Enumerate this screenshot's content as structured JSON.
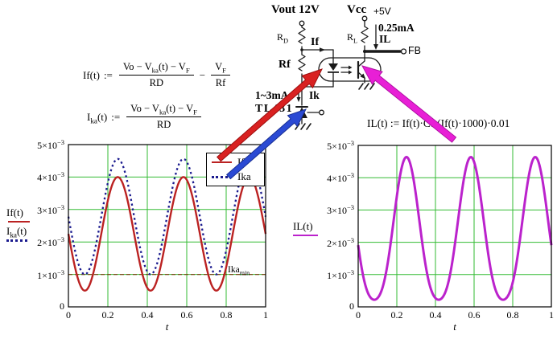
{
  "circuit": {
    "vout": "Vout 12V",
    "vcc": "Vcc",
    "vcc_supply": "+5V",
    "rd_main": "R",
    "rd_sub": "D",
    "rl_main": "R",
    "rl_sub": "L",
    "il_value": "0.25mA",
    "il_name": "IL",
    "fb": "FB",
    "if_name": "If",
    "rf": "Rf",
    "ik_range": "1~3mA",
    "ik_name": "Ik",
    "tl431": "TL431"
  },
  "formulas": {
    "if_lhs": "If(t)",
    "assign": ":=",
    "num_a": "Vo − V",
    "num_a_sub": "ka",
    "num_b": "(t) − V",
    "num_b_sub": "F",
    "den_rd": "RD",
    "minus": "−",
    "vf_main": "V",
    "vf_sub": "F",
    "den_rf": "Rf",
    "ika_lhs_main": "I",
    "ika_lhs_sub": "ka",
    "ika_lhs_tail": "(t)",
    "il_formula": "IL(t) := If(t)·Ctr(If(t)·1000)·0.01"
  },
  "chart_data": [
    {
      "type": "line",
      "xlabel": "t",
      "xlim": [
        0,
        1
      ],
      "ylim": [
        0,
        0.005
      ],
      "grid": true,
      "grid_color": "#33bb33",
      "xticks": [
        0,
        0.2,
        0.4,
        0.6,
        0.8,
        1
      ],
      "xtick_labels": [
        "0",
        "0.2",
        "0.4",
        "0.6",
        "0.8",
        "1"
      ],
      "ytick_labels": [
        {
          "base": "0",
          "exp": ""
        },
        {
          "base": "1×10",
          "exp": "−3"
        },
        {
          "base": "2×10",
          "exp": "−3"
        },
        {
          "base": "3×10",
          "exp": "−3"
        },
        {
          "base": "4×10",
          "exp": "−3"
        },
        {
          "base": "5×10",
          "exp": "−3"
        }
      ],
      "ylabel_lines": [
        {
          "main": "If(t)",
          "sub": "",
          "tail": "",
          "color": "#bb2222",
          "style": "solid"
        },
        {
          "main": "I",
          "sub": "ka",
          "tail": "(t)",
          "color": "#1c1c8f",
          "style": "dotted"
        }
      ],
      "legend": [
        {
          "label": "If",
          "color": "#bb2222",
          "style": "solid"
        },
        {
          "label": "Ika",
          "color": "#1c1c8f",
          "style": "dotted"
        }
      ],
      "legend_position": "top-right",
      "marker": {
        "label_base": "Ika",
        "label_sub": "min",
        "y_mA": 1,
        "color": "#7a4a1a"
      },
      "samples_unit": "mA",
      "samples_t": [
        0,
        0.05,
        0.1,
        0.15,
        0.2,
        0.25,
        0.3,
        0.35,
        0.4,
        0.45,
        0.5,
        0.55,
        0.6,
        0.65,
        0.7,
        0.75,
        0.8,
        0.85,
        0.9,
        0.95,
        1
      ],
      "series": [
        {
          "name": "If",
          "color": "#bb2222",
          "width": 2.4,
          "dash": [],
          "model": {
            "offset_mA": 2.25,
            "amp_mA": 1.75,
            "cycles": 3
          },
          "samples_mA": [
            2.25,
            0.83,
            0.59,
            1.71,
            3.28,
            4.0,
            3.28,
            1.71,
            0.59,
            0.83,
            2.25,
            3.67,
            3.91,
            2.79,
            1.22,
            0.5,
            1.22,
            2.79,
            3.91,
            3.67,
            2.25
          ]
        },
        {
          "name": "Ika",
          "color": "#1c1c8f",
          "width": 2.3,
          "dash": [
            2.5,
            3.5
          ],
          "model": {
            "offset_mA": 2.78,
            "amp_mA": 1.78,
            "cycles": 3
          },
          "samples_mA": [
            2.78,
            1.34,
            1.09,
            2.23,
            3.83,
            4.56,
            3.83,
            2.23,
            1.09,
            1.34,
            2.78,
            4.22,
            4.47,
            3.33,
            1.73,
            1.0,
            1.73,
            3.33,
            4.47,
            4.22,
            2.78
          ]
        }
      ]
    },
    {
      "type": "line",
      "xlabel": "t",
      "xlim": [
        0,
        1
      ],
      "ylim": [
        0,
        0.005
      ],
      "grid": true,
      "grid_color": "#33bb33",
      "xticks": [
        0,
        0.2,
        0.4,
        0.6,
        0.8,
        1
      ],
      "xtick_labels": [
        "0",
        "0.2",
        "0.4",
        "0.6",
        "0.8",
        "1"
      ],
      "ytick_labels": [
        {
          "base": "0",
          "exp": ""
        },
        {
          "base": "1×10",
          "exp": "−3"
        },
        {
          "base": "2×10",
          "exp": "−3"
        },
        {
          "base": "3×10",
          "exp": "−3"
        },
        {
          "base": "4×10",
          "exp": "−3"
        },
        {
          "base": "5×10",
          "exp": "−3"
        }
      ],
      "ylabel_lines": [
        {
          "main": "IL(t)",
          "sub": "",
          "tail": "",
          "color": "#bb22cc",
          "style": "solid"
        }
      ],
      "samples_unit": "mA",
      "samples_t": [
        0,
        0.05,
        0.1,
        0.15,
        0.2,
        0.25,
        0.3,
        0.35,
        0.4,
        0.45,
        0.5,
        0.55,
        0.6,
        0.65,
        0.7,
        0.75,
        0.8,
        0.85,
        0.9,
        0.95,
        1
      ],
      "series": [
        {
          "name": "IL",
          "color": "#bb22cc",
          "width": 3,
          "dash": [],
          "model": {
            "offset_mA": 2.25,
            "amp_mA": 1.75,
            "cycles": 3,
            "ctr_poly": [
              0.305,
              0.2777,
              -0.016
            ]
          },
          "samples_mA": [
            1.91,
            0.44,
            0.27,
            1.25,
            3.42,
            4.64,
            3.42,
            1.25,
            0.27,
            0.44,
            1.91,
            4.07,
            4.48,
            2.67,
            0.76,
            0.22,
            0.76,
            2.67,
            4.48,
            4.07,
            1.91
          ]
        }
      ]
    }
  ],
  "arrows": [
    {
      "name": "red-arrow-if",
      "color": "#d92121",
      "stroke": "#9d0e0e",
      "from": [
        272,
        198
      ],
      "to": [
        400,
        86
      ],
      "bw": 7,
      "hw": 20,
      "hl": 24
    },
    {
      "name": "blue-arrow-ika",
      "color": "#2b4ad4",
      "stroke": "#182f94",
      "from": [
        284,
        220
      ],
      "to": [
        380,
        136
      ],
      "bw": 7,
      "hw": 18,
      "hl": 22
    },
    {
      "name": "magenta-arrow-il",
      "color": "#e81fd6",
      "stroke": "#b012a4",
      "from": [
        564,
        174
      ],
      "to": [
        450,
        82
      ],
      "bw": 8,
      "hw": 20,
      "hl": 24
    }
  ]
}
